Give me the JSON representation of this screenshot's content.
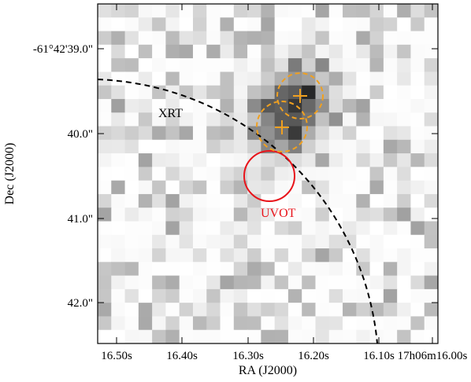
{
  "image": {
    "xlabel": "RA (J2000)",
    "ylabel": "Dec (J2000)",
    "x_ticks": [
      "16.50s",
      "16.40s",
      "16.30s",
      "16.20s",
      "16.10s",
      "17h06m16.00s"
    ],
    "y_ticks": [
      "-61°42'39.0\"",
      "40.0\"",
      "41.0\"",
      "42.0\""
    ],
    "annotations": {
      "xrt_label": "XRT",
      "uvot_label": "UVOT"
    },
    "colors": {
      "uvot_circle": "#e8141b",
      "source_marker": "#f0a020",
      "xrt_circle": "#000000"
    },
    "grid": "off",
    "description_of_overlays": [
      "dashed black arc (XRT error circle)",
      "solid red circle (UVOT position)",
      "two dashed orange circles with plus markers (source positions)"
    ]
  }
}
